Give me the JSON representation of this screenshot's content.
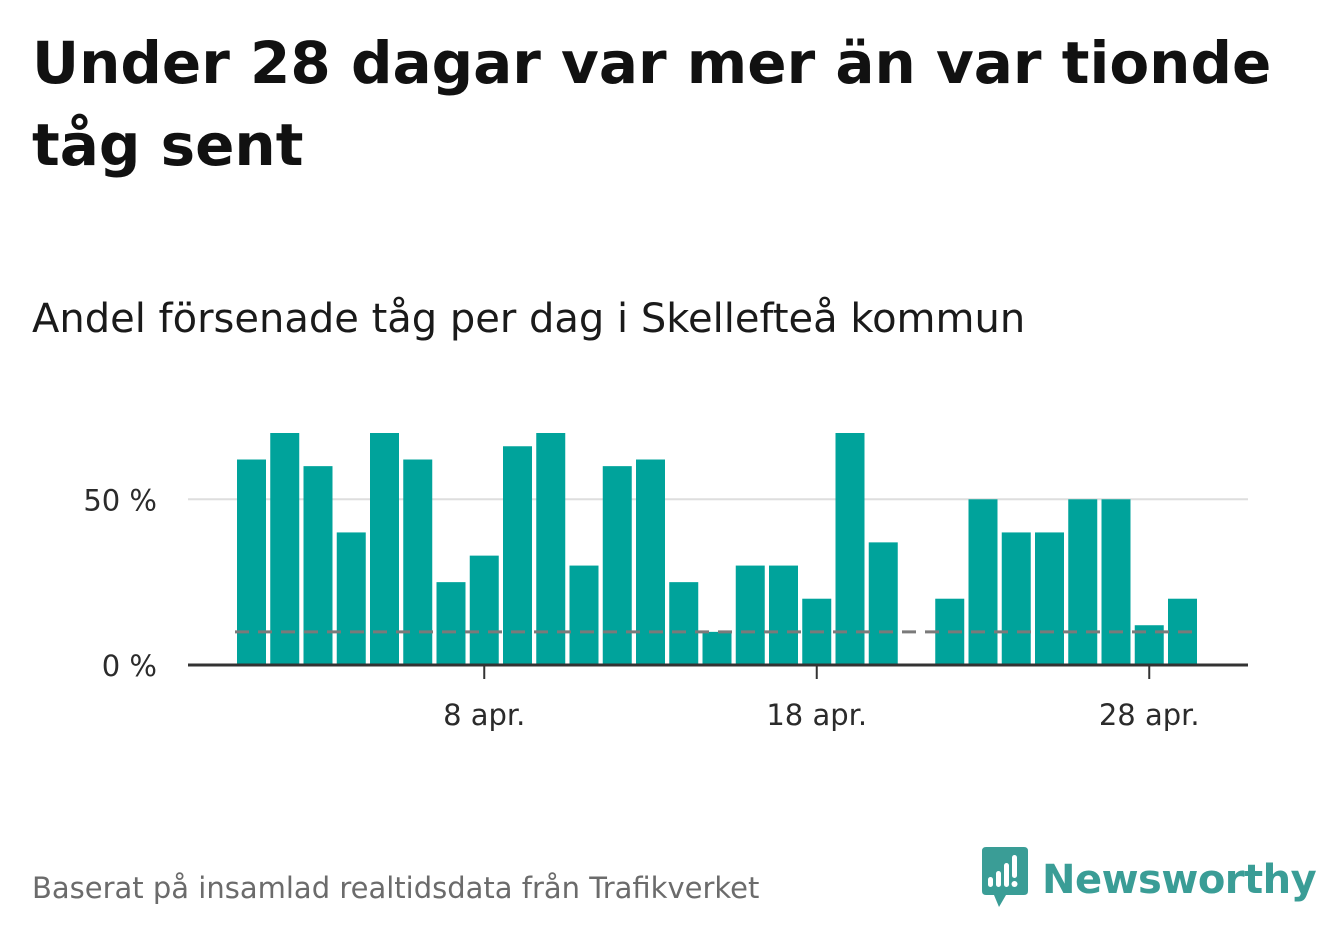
{
  "title": "Under 28 dagar var mer än var tionde tåg sent",
  "subtitle": "Andel försenade tåg per dag i Skellefteå kommun",
  "source": "Baserat på insamlad realtidsdata från Trafikverket",
  "brand": {
    "name": "Newsworthy",
    "icon": "newsworthy-logo-icon"
  },
  "colors": {
    "bar": "#00a39b",
    "reference_line": "#7a7a7a",
    "grid": "#dedede",
    "axis": "#333333",
    "brand": "#3a9d96"
  },
  "chart_data": {
    "type": "bar",
    "title": "Andel försenade tåg per dag i Skellefteå kommun",
    "xlabel": "",
    "ylabel": "",
    "x_start_day": 1,
    "values": [
      62,
      70,
      60,
      40,
      70,
      62,
      25,
      33,
      66,
      70,
      30,
      60,
      62,
      25,
      10,
      30,
      30,
      20,
      70,
      37,
      null,
      20,
      50,
      40,
      40,
      50,
      50,
      12,
      20
    ],
    "reference_value": 10,
    "ylim": [
      0,
      70
    ],
    "y_ticks": [
      {
        "value": 0,
        "label": "0 %"
      },
      {
        "value": 50,
        "label": "50 %"
      }
    ],
    "x_ticks": [
      {
        "day": 8,
        "label": "8 apr."
      },
      {
        "day": 18,
        "label": "18 apr."
      },
      {
        "day": 28,
        "label": "28 apr."
      }
    ],
    "grid": true,
    "legend": "none"
  }
}
